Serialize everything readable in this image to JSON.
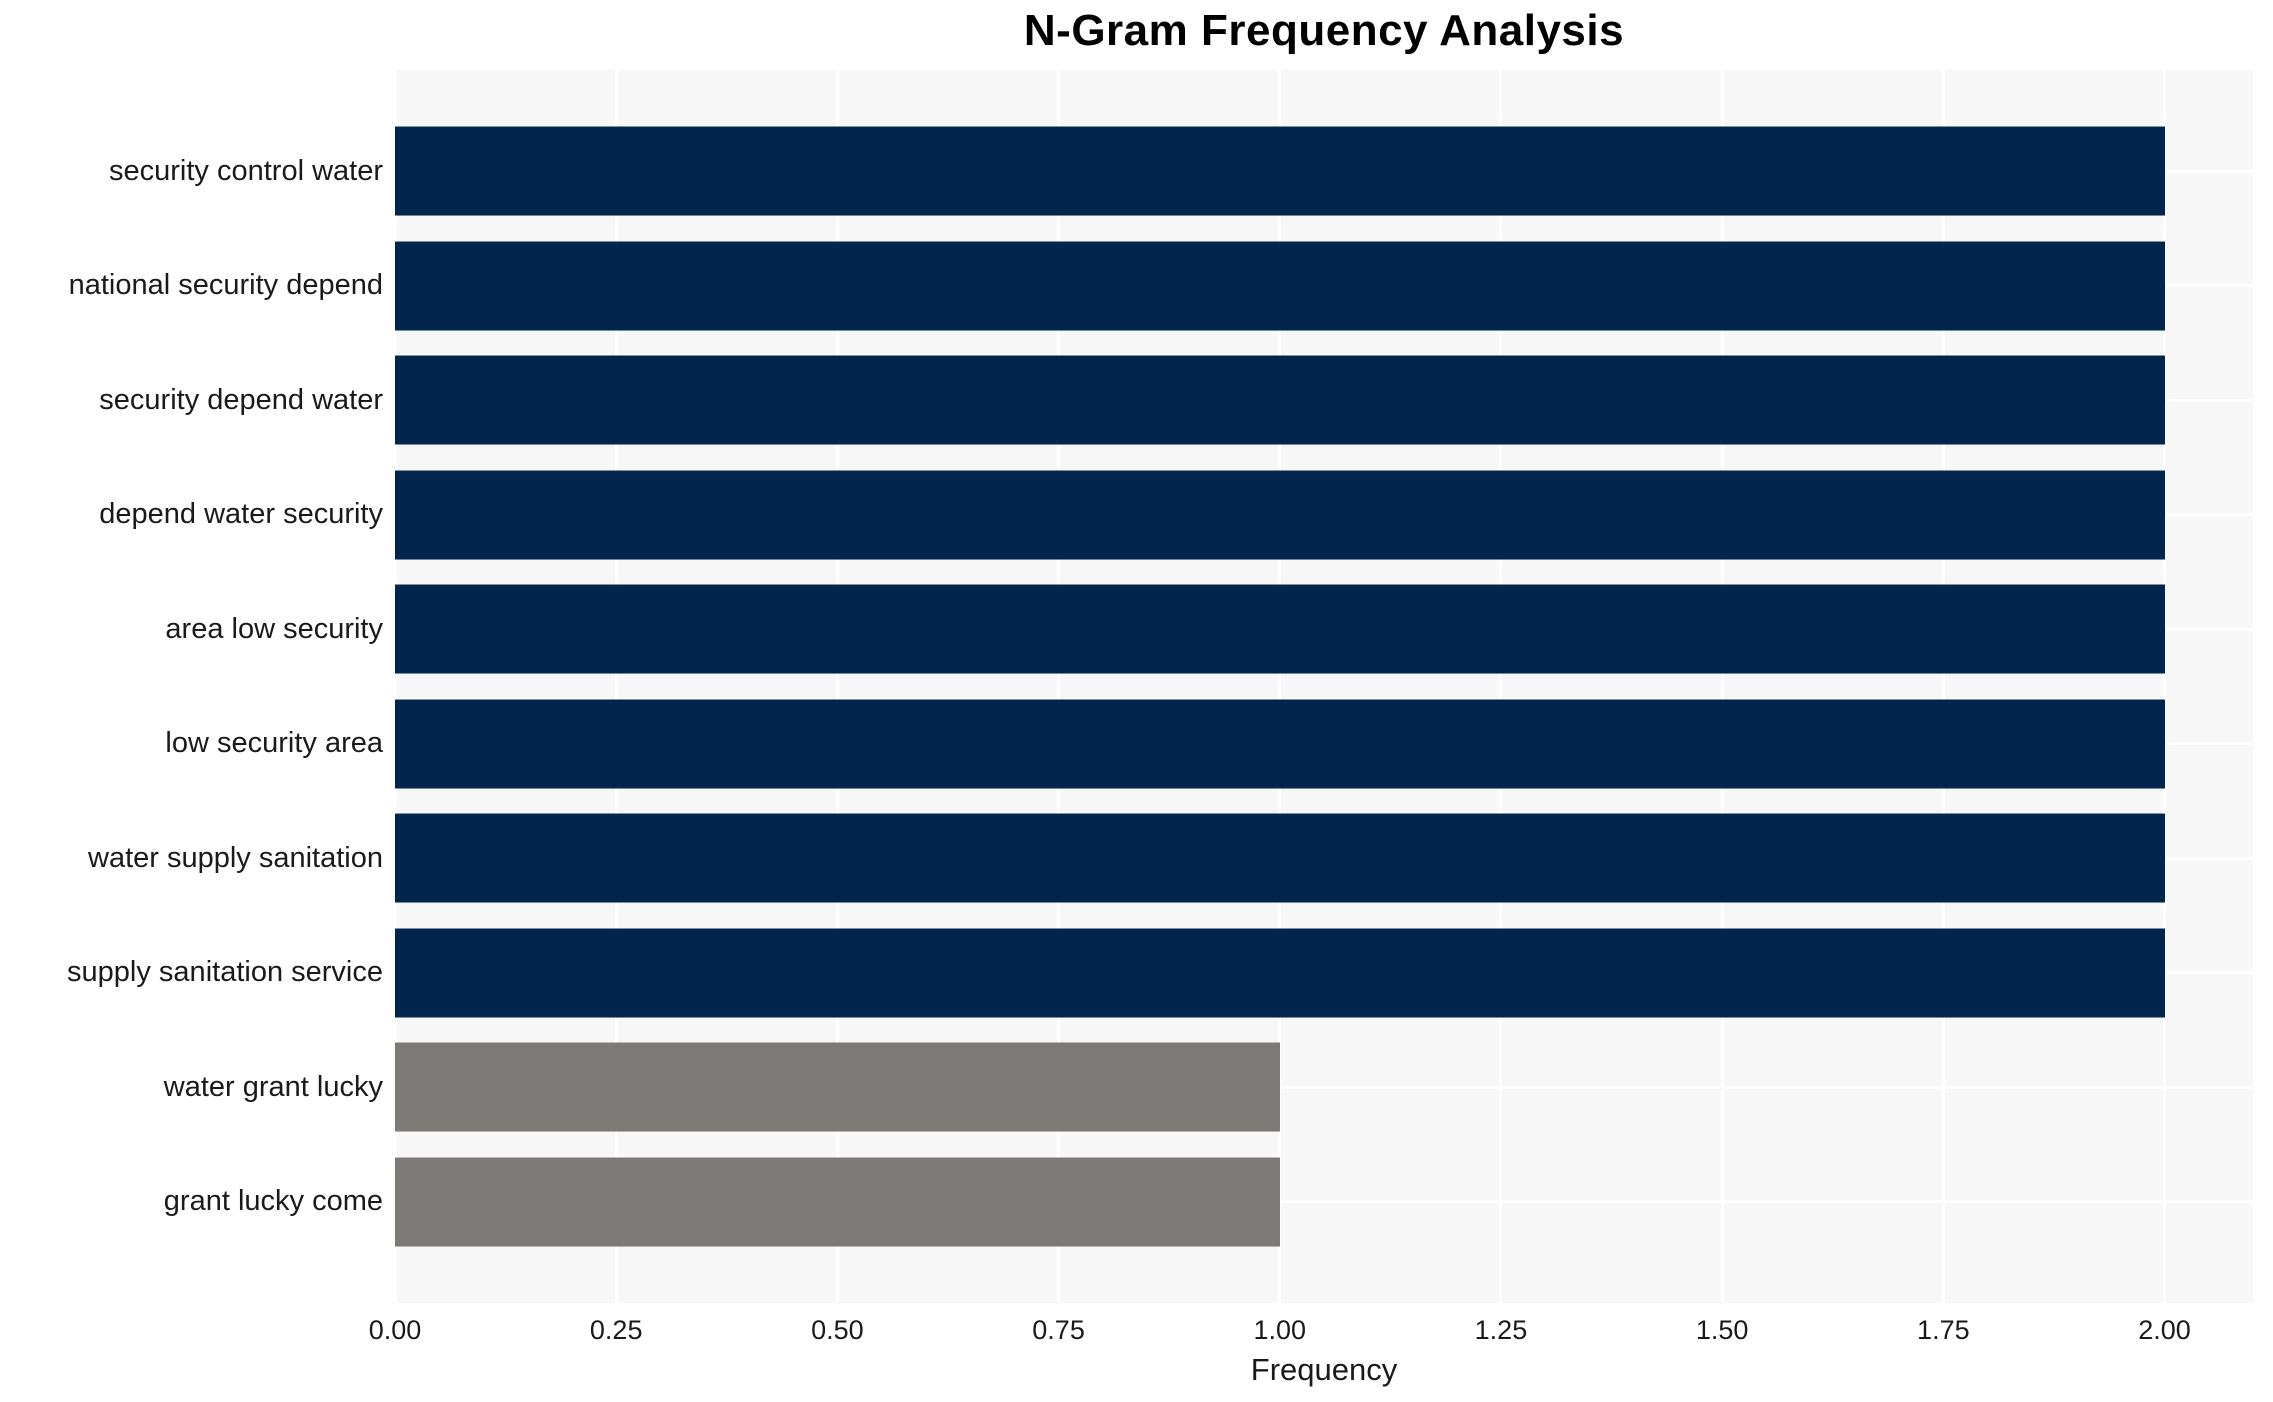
{
  "title": "N-Gram Frequency Analysis",
  "chart_data": {
    "type": "bar",
    "orientation": "horizontal",
    "title": "N-Gram Frequency Analysis",
    "xlabel": "Frequency",
    "ylabel": "",
    "categories": [
      "security control water",
      "national security depend",
      "security depend water",
      "depend water security",
      "area low security",
      "low security area",
      "water supply sanitation",
      "supply sanitation service",
      "water grant lucky",
      "grant lucky come"
    ],
    "values": [
      2,
      2,
      2,
      2,
      2,
      2,
      2,
      2,
      1,
      1
    ],
    "bar_colors": [
      "#02254d",
      "#02254d",
      "#02254d",
      "#02254d",
      "#02254d",
      "#02254d",
      "#02254d",
      "#02254d",
      "#7b7a76",
      "#7b7a76"
    ],
    "xlim": [
      0,
      2.1
    ],
    "xticks": [
      0,
      0.25,
      0.5,
      0.75,
      1.0,
      1.25,
      1.5,
      1.75,
      2.0
    ],
    "xtick_labels": [
      "0.00",
      "0.25",
      "0.50",
      "0.75",
      "1.00",
      "1.25",
      "1.50",
      "1.75",
      "2.00"
    ],
    "grid": true,
    "legend_visible": false,
    "colors": {
      "bar_primary": "#02254d",
      "bar_secondary": "#7b7a76",
      "plot_background": "#f7f7f7",
      "gridline": "#ffffff",
      "tick_text": "#1a1a1a",
      "title_text": "#000000"
    }
  }
}
